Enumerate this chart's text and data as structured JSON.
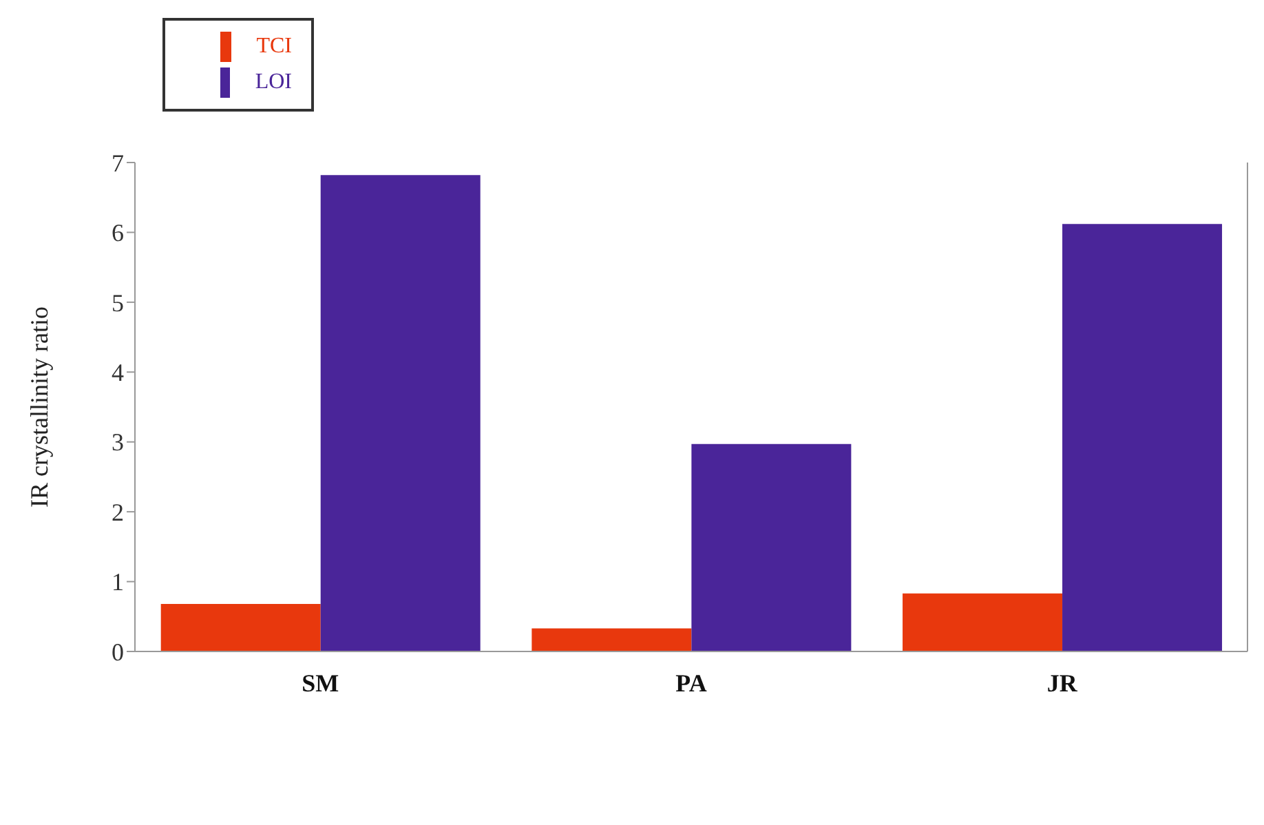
{
  "chart_data": {
    "type": "bar",
    "ylabel": "IR crystallinity ratio",
    "categories": [
      "SM",
      "PA",
      "JR"
    ],
    "series": [
      {
        "name": "TCI",
        "color": "#e8380d",
        "values": [
          0.68,
          0.33,
          0.83
        ]
      },
      {
        "name": "LOI",
        "color": "#4a2599",
        "values": [
          6.82,
          2.97,
          6.12
        ]
      }
    ],
    "ylim": [
      0,
      7
    ],
    "yticks": [
      0,
      1,
      2,
      3,
      4,
      5,
      6,
      7
    ],
    "grid": false,
    "legend": "top left"
  }
}
